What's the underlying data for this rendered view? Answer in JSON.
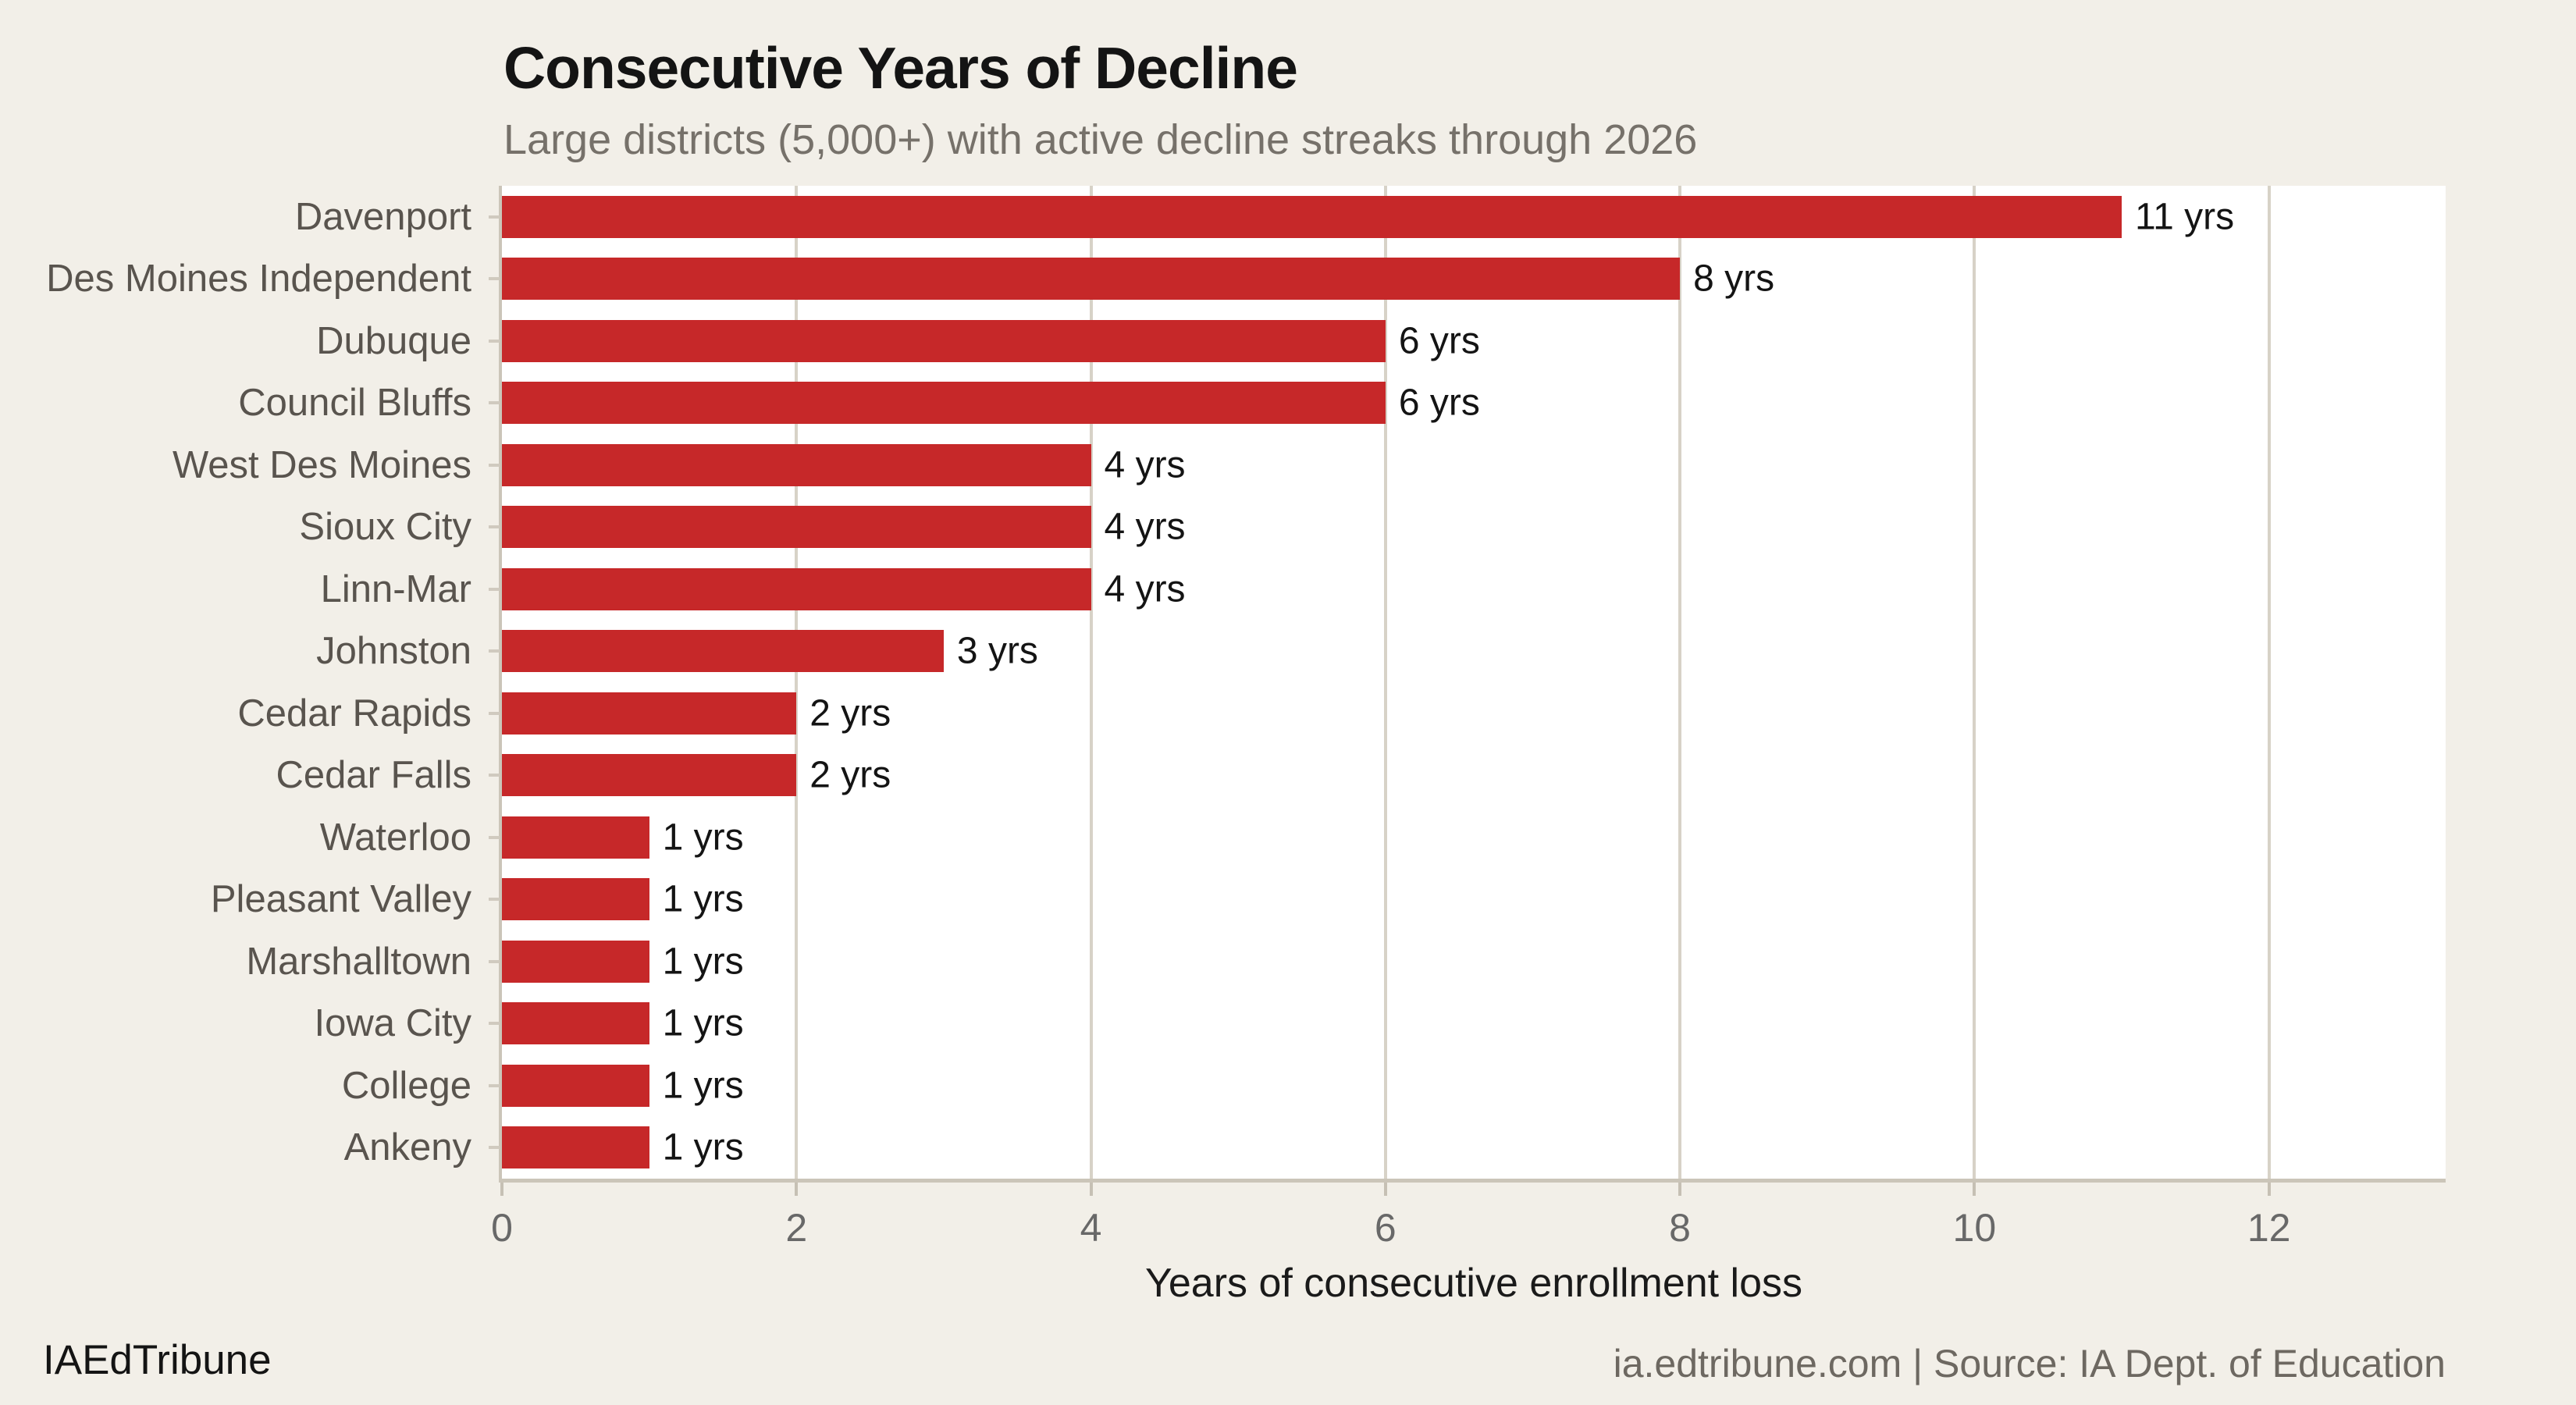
{
  "header": {
    "title": "Consecutive Years of Decline",
    "subtitle": "Large districts (5,000+) with active decline streaks through 2026"
  },
  "chart_data": {
    "type": "bar",
    "orientation": "horizontal",
    "title": "Consecutive Years of Decline",
    "subtitle": "Large districts (5,000+) with active decline streaks through 2026",
    "categories": [
      "Davenport",
      "Des Moines Independent",
      "Dubuque",
      "Council Bluffs",
      "West Des Moines",
      "Sioux City",
      "Linn-Mar",
      "Johnston",
      "Cedar Rapids",
      "Cedar Falls",
      "Waterloo",
      "Pleasant Valley",
      "Marshalltown",
      "Iowa City",
      "College",
      "Ankeny"
    ],
    "values": [
      11,
      8,
      6,
      6,
      4,
      4,
      4,
      3,
      2,
      2,
      1,
      1,
      1,
      1,
      1,
      1
    ],
    "value_labels": [
      "11 yrs",
      "8 yrs",
      "6 yrs",
      "6 yrs",
      "4 yrs",
      "4 yrs",
      "4 yrs",
      "3 yrs",
      "2 yrs",
      "2 yrs",
      "1 yrs",
      "1 yrs",
      "1 yrs",
      "1 yrs",
      "1 yrs",
      "1 yrs"
    ],
    "xlabel": "Years of consecutive enrollment loss",
    "ylabel": "",
    "xticks": [
      0,
      2,
      4,
      6,
      8,
      10,
      12
    ],
    "xlim": [
      0,
      13.2
    ],
    "grid": true,
    "legend": "none",
    "bar_color": "#c62829",
    "plot_bg": "#ffffff",
    "figure_bg": "#f2efe8"
  },
  "footer": {
    "left": "IAEdTribune",
    "right": "ia.edtribune.com | Source: IA Dept. of Education"
  }
}
